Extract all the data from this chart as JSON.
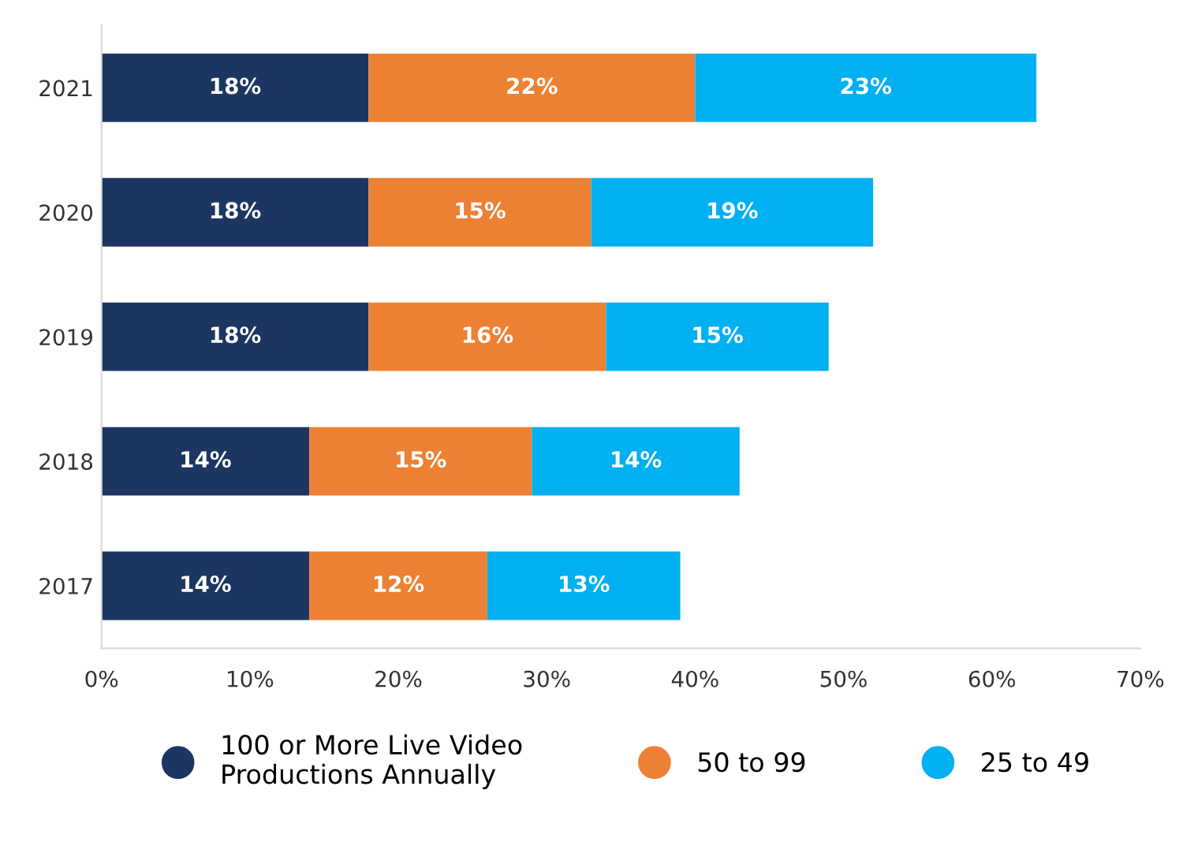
{
  "chart_data": {
    "type": "bar",
    "orientation": "horizontal",
    "stacked": true,
    "categories": [
      "2021",
      "2020",
      "2019",
      "2018",
      "2017"
    ],
    "series": [
      {
        "name": "100 or More Live Video\nProductions Annually",
        "color": "#1c3661",
        "values": [
          18,
          18,
          18,
          14,
          14
        ],
        "value_labels": [
          "18%",
          "18%",
          "18%",
          "14%",
          "14%"
        ]
      },
      {
        "name": "50 to 99",
        "color": "#ed8133",
        "values": [
          22,
          15,
          16,
          15,
          12
        ],
        "value_labels": [
          "22%",
          "15%",
          "16%",
          "15%",
          "12%"
        ]
      },
      {
        "name": "25 to 49",
        "color": "#00b0f0",
        "values": [
          23,
          19,
          15,
          14,
          13
        ],
        "value_labels": [
          "23%",
          "19%",
          "15%",
          "14%",
          "13%"
        ]
      }
    ],
    "xlim": [
      0,
      70
    ],
    "xticks": [
      {
        "value": 0,
        "label": "0%"
      },
      {
        "value": 10,
        "label": "10%"
      },
      {
        "value": 20,
        "label": "20%"
      },
      {
        "value": 30,
        "label": "30%"
      },
      {
        "value": 40,
        "label": "40%"
      },
      {
        "value": 50,
        "label": "50%"
      },
      {
        "value": 60,
        "label": "60%"
      },
      {
        "value": 70,
        "label": "70%"
      }
    ],
    "grid": false,
    "legend": "bottom"
  }
}
